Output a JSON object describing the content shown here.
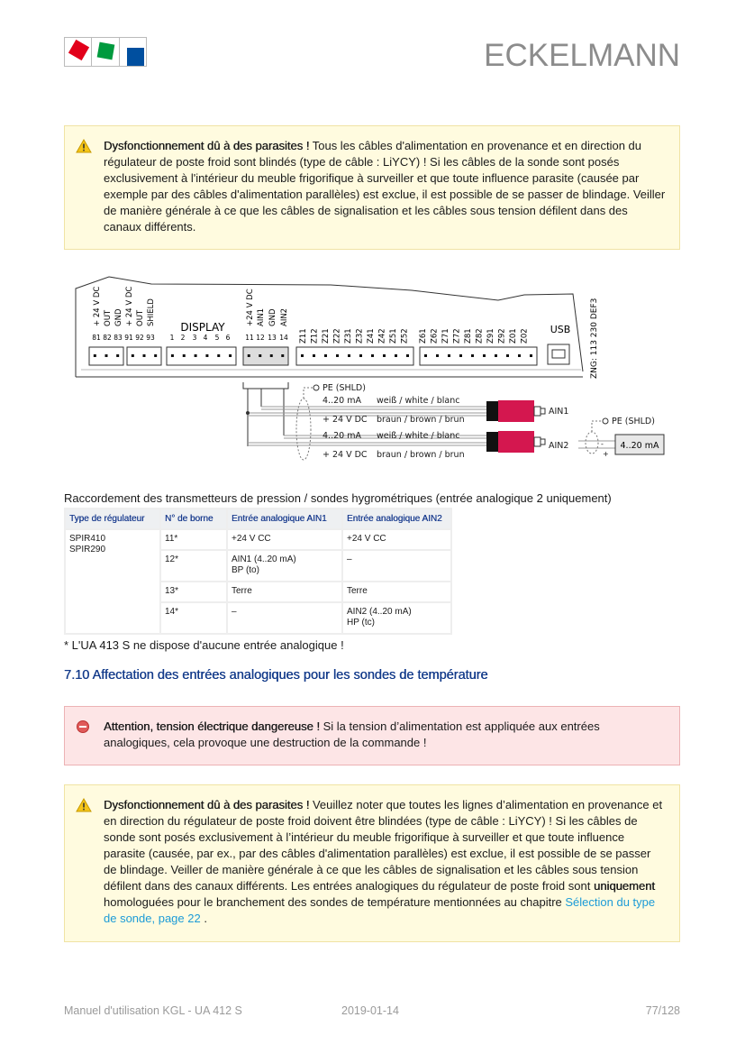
{
  "header": {
    "brand": "ECKELMANN",
    "logo_colors": [
      "#e2001a",
      "#009a3e",
      "#004f9f"
    ]
  },
  "warning1": {
    "title": "Dysfonctionnement dû à des parasites !",
    "text": " Tous les câbles d'alimentation en provenance et en direction du régulateur de poste froid sont blindés (type de câble : LiYCY) ! Si les câbles de la sonde sont posés exclusivement à l'intérieur du meuble frigorifique à surveiller et que toute influence parasite (causée par exemple par des câbles d'alimentation parallèles) est exclue, il est possible de se passer de blindage. Veiller de manière générale à ce que les câbles de signalisation et les câbles sous tension défilent dans des canaux différents.",
    "icon": "warning-triangle-icon"
  },
  "diagram": {
    "group1_labels": [
      "+ 24 V DC",
      "OUT",
      "GND",
      "+ 24 V DC",
      "OUT",
      "SHIELD"
    ],
    "group1_numbers": [
      "81",
      "82",
      "83",
      "91",
      "92",
      "93"
    ],
    "display_label": "DISPLAY",
    "display_numbers": [
      "1",
      "2",
      "3",
      "4",
      "5",
      "6"
    ],
    "ain_labels": [
      "+24 V DC",
      "AIN1",
      "GND",
      "AIN2"
    ],
    "ain_numbers": [
      "11",
      "12",
      "13",
      "14"
    ],
    "z_labels_1": [
      "Z11",
      "Z12",
      "Z21",
      "Z22",
      "Z31",
      "Z32",
      "Z41",
      "Z42",
      "Z51",
      "Z52"
    ],
    "z_labels_2": [
      "Z61",
      "Z62",
      "Z71",
      "Z72",
      "Z81",
      "Z82",
      "Z91",
      "Z92",
      "Z01",
      "Z02"
    ],
    "usb_label": "USB",
    "drawing_number": "ZNG: 113 230 DEF3",
    "pe_shld": "PE (SHLD)",
    "signal": "4..20 mA",
    "white": "weiß / white / blanc",
    "supply": "+ 24 V DC",
    "brown": "braun / brown / brun",
    "ain1": "AIN1",
    "ain2": "AIN2",
    "sensor_box": "4..20 mA",
    "minus": "-",
    "plus": "+",
    "plug_color": "#d4174f"
  },
  "caption": "Raccordement des transmetteurs de pression / sondes hygrométriques (entrée analogique 2 uniquement)",
  "table": {
    "headers": [
      "Type de régulateur",
      "N° de borne",
      "Entrée analogique AIN1",
      "Entrée analogique AIN2"
    ],
    "type_cell": [
      "SPIR410",
      "SPIR290"
    ],
    "rows": [
      {
        "borne": "11*",
        "ain1": [
          "+24 V CC"
        ],
        "ain2": [
          "+24 V CC"
        ]
      },
      {
        "borne": "12*",
        "ain1": [
          "AIN1 (4..20 mA)",
          "BP (to)"
        ],
        "ain2": [
          "–"
        ]
      },
      {
        "borne": "13*",
        "ain1": [
          "Terre"
        ],
        "ain2": [
          "Terre"
        ]
      },
      {
        "borne": "14*",
        "ain1": [
          "–"
        ],
        "ain2": [
          "AIN2 (4..20 mA)",
          "HP (tc)"
        ]
      }
    ]
  },
  "footnote": "* L'UA 413 S ne dispose d'aucune entrée analogique !",
  "section_heading": "7.10 Affectation des entrées analogiques pour les sondes de température",
  "danger": {
    "title": "Attention, tension électrique dangereuse !",
    "text": " Si la tension d’alimentation est appliquée aux entrées analogiques, cela provoque une destruction de la commande !",
    "icon": "stop-circle-icon"
  },
  "warning2": {
    "title": "Dysfonctionnement dû à des parasites !",
    "text1": " Veuillez noter que toutes les lignes d’alimentation en provenance et en direction du régulateur de poste froid doivent être blindées (type de câble : LiYCY) ! Si les câbles de sonde sont posés exclusivement à l’intérieur du meuble frigorifique à surveiller et que toute influence parasite (causée, par ex., par des câbles d'alimentation parallèles) est exclue, il est possible de se passer de blindage. Veiller de manière générale à ce que les câbles de signalisation et les câbles sous tension défilent dans des canaux différents. Les entrées analogiques du régulateur de poste froid sont ",
    "emphasis": "uniquement",
    "text2": " homologuées pour le branchement des sondes de température mentionnées au chapitre ",
    "link": "Sélection du type de sonde, page 22",
    "text3": " .",
    "icon": "warning-triangle-icon"
  },
  "footer": {
    "manual": "Manuel d'utilisation KGL - UA 412 S",
    "date": "2019-01-14",
    "page": "77/128"
  }
}
